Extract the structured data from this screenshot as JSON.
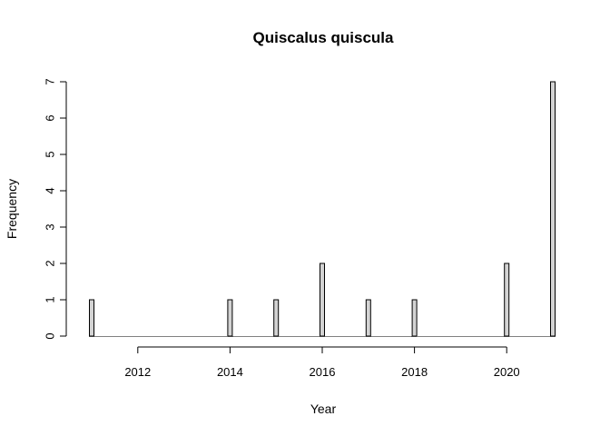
{
  "chart_data": {
    "type": "bar",
    "title": "Quiscalus quiscula",
    "xlabel": "Year",
    "ylabel": "Frequency",
    "x": [
      2011,
      2014,
      2015,
      2016,
      2017,
      2018,
      2020,
      2021
    ],
    "values": [
      1,
      1,
      1,
      2,
      1,
      1,
      2,
      7
    ],
    "xlim": [
      2011,
      2021
    ],
    "ylim": [
      0,
      7
    ],
    "x_ticks": [
      "2012",
      "2014",
      "2016",
      "2018",
      "2020"
    ],
    "y_ticks": [
      "0",
      "1",
      "2",
      "3",
      "4",
      "5",
      "6",
      "7"
    ],
    "grid": false,
    "legend": "none",
    "colors": {
      "bar_fill": "#d3d3d3",
      "bar_stroke": "#000000"
    }
  }
}
